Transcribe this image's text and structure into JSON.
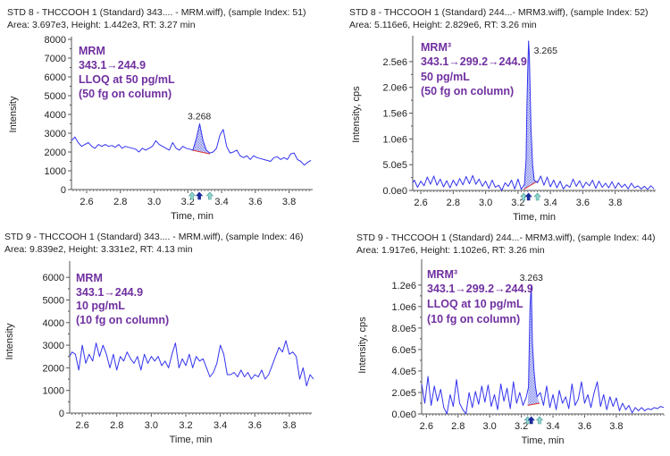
{
  "chart_data": [
    {
      "type": "line",
      "title_lines": [
        "STD 8 - THCCOOH 1 (Standard) 343.... - MRM.wiff), (sample Index: 51)",
        "Area: 3.697e3, Height: 1.442e3, RT: 3.27 min"
      ],
      "annotation": [
        "MRM",
        "343.1→244.9",
        "LLOQ at 50 pg/mL",
        "(50 fg on column)"
      ],
      "xlabel": "Time, min",
      "ylabel": "Intensity",
      "xlim": [
        2.51,
        3.94
      ],
      "ylim": [
        0,
        8000
      ],
      "xticks": [
        2.6,
        2.8,
        3.0,
        3.2,
        3.4,
        3.6,
        3.8
      ],
      "xtick_labels": [
        "2.6",
        "2.8",
        "3.0",
        "3.2",
        "3.4",
        "3.6",
        "3.8"
      ],
      "yticks": [
        0,
        1000,
        2000,
        3000,
        4000,
        5000,
        6000,
        7000,
        8000
      ],
      "ytick_labels": [
        "0",
        "1000",
        "2000",
        "3000",
        "4000",
        "5000",
        "6000",
        "7000",
        "8000"
      ],
      "x_start": 2.51,
      "x_step": 0.02,
      "y": [
        2600,
        2800,
        2500,
        2300,
        2400,
        2500,
        2300,
        2200,
        2400,
        2300,
        2400,
        2300,
        2350,
        2250,
        2400,
        2200,
        2300,
        2250,
        2200,
        2150,
        2000,
        2200,
        2100,
        2200,
        2300,
        2600,
        2400,
        2300,
        2200,
        2100,
        2500,
        2200,
        2100,
        2300,
        2200,
        2150,
        2100,
        2700,
        3500,
        2600,
        2100,
        1950,
        2000,
        2200,
        2900,
        3200,
        2300,
        1950,
        2000,
        2100,
        1800,
        1700,
        1800,
        1600,
        1800,
        1700,
        1650,
        1600,
        1550,
        1500,
        1700,
        1750,
        1600,
        1700,
        1600,
        1900,
        1950,
        1600,
        1500,
        1300,
        1450,
        1550
      ],
      "peak": {
        "rt_label": "3.268",
        "rt": 3.268,
        "apex": 3500,
        "start": 3.225,
        "end": 3.33,
        "baseline": [
          2100,
          1900
        ]
      },
      "colors": {
        "trace": "#3333ee",
        "baseline": "#e03030",
        "annotation": "#7030a0"
      }
    },
    {
      "type": "line",
      "title_lines": [
        "STD 8 - THCCOOH 1 (Standard) 244...- MRM3.wiff), (sample Index: 52)",
        "Area: 5.116e6, Height: 2.829e6, RT: 3.26 min"
      ],
      "annotation": [
        "MRM³",
        "343.1→299.2→244.9",
        "50 pg/mL",
        "(50 fg on column)"
      ],
      "xlabel": "Time, min",
      "ylabel": "Intensity, cps",
      "xlim": [
        2.55,
        4.05
      ],
      "ylim": [
        0,
        2950000
      ],
      "xticks": [
        2.6,
        2.8,
        3.0,
        3.2,
        3.4,
        3.6,
        3.8
      ],
      "xtick_labels": [
        "2.6",
        "2.8",
        "3.0",
        "3.2",
        "3.4",
        "3.6",
        "3.8"
      ],
      "yticks": [
        0,
        500000,
        1000000,
        1500000,
        2000000,
        2500000
      ],
      "ytick_labels": [
        "0.0e0",
        "5.0e5",
        "1.0e6",
        "1.5e6",
        "2.0e6",
        "2.5e6"
      ],
      "points": [
        [
          2.55,
          150000.0
        ],
        [
          2.56,
          200000.0
        ],
        [
          2.58,
          60000.0
        ],
        [
          2.6,
          180000.0
        ],
        [
          2.62,
          90000.0
        ],
        [
          2.64,
          260000.0
        ],
        [
          2.66,
          120000.0
        ],
        [
          2.68,
          280000.0
        ],
        [
          2.7,
          100000.0
        ],
        [
          2.72,
          220000.0
        ],
        [
          2.74,
          70000.0
        ],
        [
          2.76,
          190000.0
        ],
        [
          2.78,
          50000.0
        ],
        [
          2.8,
          200000.0
        ],
        [
          2.82,
          90000.0
        ],
        [
          2.84,
          230000.0
        ],
        [
          2.86,
          110000.0
        ],
        [
          2.88,
          270000.0
        ],
        [
          2.9,
          130000.0
        ],
        [
          2.92,
          290000.0
        ],
        [
          2.94,
          120000.0
        ],
        [
          2.96,
          220000.0
        ],
        [
          2.98,
          80000.0
        ],
        [
          3.0,
          180000.0
        ],
        [
          3.02,
          40000.0
        ],
        [
          3.04,
          200000.0
        ],
        [
          3.06,
          60000.0
        ],
        [
          3.08,
          100000.0
        ],
        [
          3.1,
          0.0
        ],
        [
          3.12,
          150000.0
        ],
        [
          3.14,
          80000.0
        ],
        [
          3.16,
          200000.0
        ],
        [
          3.18,
          30000.0
        ],
        [
          3.2,
          220000.0
        ],
        [
          3.22,
          20000.0
        ],
        [
          3.24,
          120000.0
        ],
        [
          3.25,
          600000.0
        ],
        [
          3.255,
          1600000.0
        ],
        [
          3.26,
          2300000.0
        ],
        [
          3.265,
          2900000.0
        ],
        [
          3.27,
          2600000.0
        ],
        [
          3.28,
          1200000.0
        ],
        [
          3.29,
          500000.0
        ],
        [
          3.3,
          200000.0
        ],
        [
          3.32,
          150000.0
        ],
        [
          3.34,
          280000.0
        ],
        [
          3.36,
          100000.0
        ],
        [
          3.38,
          260000.0
        ],
        [
          3.4,
          70000.0
        ],
        [
          3.42,
          200000.0
        ],
        [
          3.44,
          50000.0
        ],
        [
          3.46,
          180000.0
        ],
        [
          3.48,
          30000.0
        ],
        [
          3.5,
          110000.0
        ],
        [
          3.52,
          60000.0
        ],
        [
          3.54,
          220000.0
        ],
        [
          3.56,
          80000.0
        ],
        [
          3.58,
          190000.0
        ],
        [
          3.6,
          50000.0
        ],
        [
          3.62,
          160000.0
        ],
        [
          3.64,
          90000.0
        ],
        [
          3.66,
          200000.0
        ],
        [
          3.68,
          40000.0
        ],
        [
          3.7,
          180000.0
        ],
        [
          3.72,
          60000.0
        ],
        [
          3.74,
          140000.0
        ],
        [
          3.76,
          50000.0
        ],
        [
          3.78,
          170000.0
        ],
        [
          3.8,
          40000.0
        ],
        [
          3.82,
          150000.0
        ],
        [
          3.84,
          60000.0
        ],
        [
          3.86,
          120000.0
        ],
        [
          3.88,
          30000.0
        ],
        [
          3.9,
          140000.0
        ],
        [
          3.92,
          50000.0
        ],
        [
          3.94,
          90000.0
        ],
        [
          3.96,
          30000.0
        ],
        [
          3.98,
          80000.0
        ],
        [
          4.0,
          20000.0
        ],
        [
          4.02,
          90000.0
        ],
        [
          4.04,
          30000.0
        ]
      ],
      "peak": {
        "rt_label": "3.265",
        "rt": 3.265,
        "apex": 2900000,
        "start": 3.235,
        "end": 3.32,
        "baseline": [
          20000,
          180000
        ]
      },
      "colors": {
        "trace": "#3333ee",
        "baseline": "#e03030",
        "annotation": "#7030a0"
      }
    },
    {
      "type": "line",
      "title_lines": [
        "STD 9 - THCCOOH 1 (Standard) 343.... - MRM.wiff), (sample Index: 46)",
        "Area: 9.839e2, Height: 3.331e2, RT: 4.13 min"
      ],
      "annotation": [
        "MRM",
        "343.1→244.9",
        "10 pg/mL",
        "(10 fg on column)"
      ],
      "xlabel": "Time, min",
      "ylabel": "Intensity",
      "xlim": [
        2.527,
        3.93
      ],
      "ylim": [
        0,
        6600
      ],
      "xticks": [
        2.6,
        2.8,
        3.0,
        3.2,
        3.4,
        3.6,
        3.8
      ],
      "xtick_labels": [
        "2.6",
        "2.8",
        "3.0",
        "3.2",
        "3.4",
        "3.6",
        "3.8"
      ],
      "yticks": [
        0,
        1000,
        2000,
        3000,
        4000,
        5000,
        6000
      ],
      "ytick_labels": [
        "0",
        "1000",
        "2000",
        "3000",
        "4000",
        "5000",
        "6000"
      ],
      "x_start": 2.52,
      "x_step": 0.02,
      "y": [
        2500,
        2700,
        2600,
        1900,
        3000,
        2200,
        2600,
        2300,
        3100,
        2500,
        3000,
        2600,
        2000,
        2600,
        1900,
        2500,
        2300,
        2700,
        2400,
        2200,
        2500,
        1900,
        2600,
        2200,
        2500,
        2300,
        2500,
        2100,
        2300,
        2000,
        2600,
        3100,
        2000,
        2400,
        2100,
        2600,
        2000,
        2500,
        2300,
        2400,
        2000,
        1600,
        1800,
        2200,
        3000,
        2600,
        1700,
        1700,
        1800,
        1600,
        1900,
        1600,
        1800,
        1500,
        1700,
        1600,
        1900,
        1500,
        1700,
        2100,
        2500,
        2900,
        2700,
        3200,
        2600,
        2700,
        2500,
        1500,
        2000,
        1200,
        1700,
        1500
      ],
      "colors": {
        "trace": "#3333ee",
        "annotation": "#7030a0"
      }
    },
    {
      "type": "line",
      "title_lines": [
        "STD 9 - THCCOOH 1 (Standard) 244...- MRM3.wiff), (sample Index: 44)",
        "Area: 1.917e6, Height: 1.102e6, RT: 3.26 min"
      ],
      "annotation": [
        "MRM³",
        "343.1→299.2→244.9",
        "LLOQ at 10 pg/mL",
        "(10 fg on column)"
      ],
      "xlabel": "Time, min",
      "ylabel": "Intensity, cps",
      "xlim": [
        2.57,
        4.1
      ],
      "ylim": [
        0,
        1415000
      ],
      "xticks": [
        2.6,
        2.8,
        3.0,
        3.2,
        3.4,
        3.6,
        3.8
      ],
      "xtick_labels": [
        "2.6",
        "2.8",
        "3.0",
        "3.2",
        "3.4",
        "3.6",
        "3.8"
      ],
      "yticks": [
        0,
        200000,
        400000,
        600000,
        800000,
        1000000,
        1200000
      ],
      "ytick_labels": [
        "0.0e0",
        "2.0e5",
        "4.0e5",
        "6.0e5",
        "8.0e5",
        "1.0e6",
        "1.2e6"
      ],
      "points": [
        [
          2.57,
          280000.0
        ],
        [
          2.59,
          100000.0
        ],
        [
          2.61,
          350000.0
        ],
        [
          2.63,
          80000.0
        ],
        [
          2.65,
          260000.0
        ],
        [
          2.67,
          120000.0
        ],
        [
          2.69,
          230000.0
        ],
        [
          2.71,
          60000.0
        ],
        [
          2.73,
          0.0
        ],
        [
          2.75,
          180000.0
        ],
        [
          2.77,
          70000.0
        ],
        [
          2.79,
          320000.0
        ],
        [
          2.81,
          100000.0
        ],
        [
          2.83,
          40000.0
        ],
        [
          2.85,
          0.0
        ],
        [
          2.87,
          200000.0
        ],
        [
          2.89,
          60000.0
        ],
        [
          2.91,
          210000.0
        ],
        [
          2.93,
          90000.0
        ],
        [
          2.95,
          260000.0
        ],
        [
          2.97,
          110000.0
        ],
        [
          2.99,
          270000.0
        ],
        [
          3.01,
          70000.0
        ],
        [
          3.03,
          180000.0
        ],
        [
          3.05,
          40000.0
        ],
        [
          3.07,
          280000.0
        ],
        [
          3.09,
          120000.0
        ],
        [
          3.11,
          240000.0
        ],
        [
          3.13,
          50000.0
        ],
        [
          3.15,
          300000.0
        ],
        [
          3.17,
          100000.0
        ],
        [
          3.19,
          200000.0
        ],
        [
          3.21,
          80000.0
        ],
        [
          3.23,
          150000.0
        ],
        [
          3.245,
          250000.0
        ],
        [
          3.25,
          600000.0
        ],
        [
          3.255,
          1000000.0
        ],
        [
          3.263,
          1200000.0
        ],
        [
          3.27,
          650000.0
        ],
        [
          3.28,
          400000.0
        ],
        [
          3.29,
          250000.0
        ],
        [
          3.3,
          160000.0
        ],
        [
          3.32,
          200000.0
        ],
        [
          3.34,
          80000.0
        ],
        [
          3.36,
          260000.0
        ],
        [
          3.38,
          60000.0
        ],
        [
          3.4,
          180000.0
        ],
        [
          3.42,
          40000.0
        ],
        [
          3.44,
          220000.0
        ],
        [
          3.46,
          100000.0
        ],
        [
          3.48,
          160000.0
        ],
        [
          3.5,
          50000.0
        ],
        [
          3.52,
          280000.0
        ],
        [
          3.54,
          80000.0
        ],
        [
          3.56,
          140000.0
        ],
        [
          3.58,
          300000.0
        ],
        [
          3.6,
          100000.0
        ],
        [
          3.62,
          180000.0
        ],
        [
          3.64,
          60000.0
        ],
        [
          3.66,
          200000.0
        ],
        [
          3.68,
          300000.0
        ],
        [
          3.7,
          70000.0
        ],
        [
          3.72,
          180000.0
        ],
        [
          3.74,
          40000.0
        ],
        [
          3.76,
          160000.0
        ],
        [
          3.78,
          70000.0
        ],
        [
          3.8,
          150000.0
        ],
        [
          3.82,
          30000.0
        ],
        [
          3.84,
          100000.0
        ],
        [
          3.86,
          40000.0
        ],
        [
          3.88,
          80000.0
        ],
        [
          3.9,
          10000.0
        ],
        [
          3.92,
          60000.0
        ],
        [
          3.94,
          30000.0
        ],
        [
          3.96,
          60000.0
        ],
        [
          3.98,
          30000.0
        ],
        [
          4.0,
          50000.0
        ],
        [
          4.02,
          40000.0
        ],
        [
          4.04,
          60000.0
        ],
        [
          4.06,
          50000.0
        ],
        [
          4.08,
          70000.0
        ],
        [
          4.1,
          60000.0
        ]
      ],
      "peak": {
        "rt_label": "3.263",
        "rt": 3.263,
        "apex": 1200000,
        "start": 3.24,
        "end": 3.315,
        "baseline": [
          80000,
          100000
        ]
      },
      "colors": {
        "trace": "#3333ee",
        "baseline": "#e03030",
        "annotation": "#7030a0"
      }
    }
  ]
}
